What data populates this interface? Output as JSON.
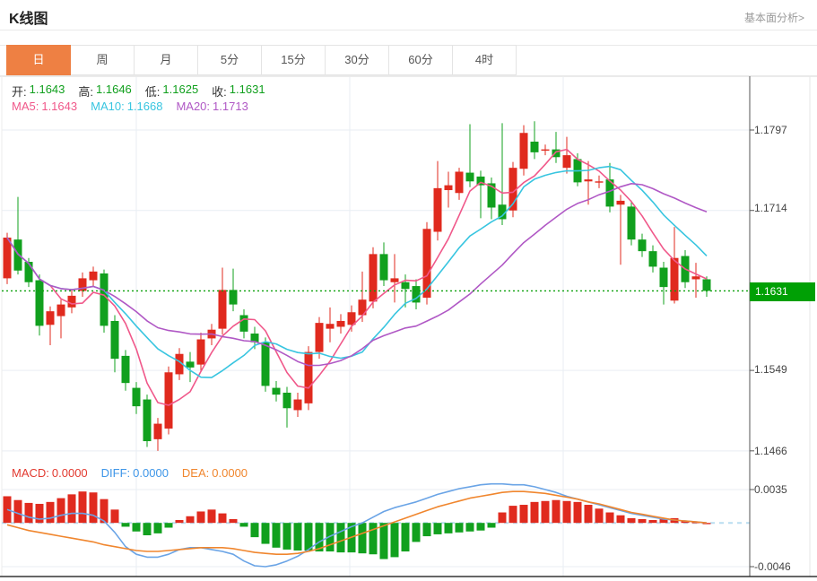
{
  "header": {
    "title": "K线图",
    "link": "基本面分析>"
  },
  "tabs": {
    "items": [
      "日",
      "周",
      "月",
      "5分",
      "15分",
      "30分",
      "60分",
      "4时"
    ],
    "active_index": 0
  },
  "ohlc_legend": {
    "open_label": "开:",
    "open": "1.1643",
    "high_label": "高:",
    "high": "1.1646",
    "low_label": "低:",
    "low": "1.1625",
    "close_label": "收:",
    "close": "1.1631"
  },
  "ma_legend": {
    "ma5_label": "MA5:",
    "ma5": "1.1643",
    "ma10_label": "MA10:",
    "ma10": "1.1668",
    "ma20_label": "MA20:",
    "ma20": "1.1713"
  },
  "macd_legend": {
    "macd_label": "MACD:",
    "macd": "0.0000",
    "diff_label": "DIFF:",
    "diff": "0.0000",
    "dea_label": "DEA:",
    "dea": "0.0000"
  },
  "colors": {
    "accent_tab": "#ee8043",
    "up": "#e02a1e",
    "down": "#11a01e",
    "ohlc_value": "#11a01e",
    "ma5": "#f0588a",
    "ma10": "#38c5e0",
    "ma20": "#b058c5",
    "diff_line": "#6aa4e6",
    "dea_line": "#f0862e",
    "macd_value_red": "#e23a30",
    "diff_value_blue": "#3e96e8",
    "dea_value_orange": "#f0862e",
    "badge_green": "#00a005",
    "price_dotted_line": "#0aa00a",
    "zero_dash": "#b9ddf1",
    "grid": "#e9eef3",
    "axis": "#555555",
    "bottom_axis": "#333333"
  },
  "chart_data": {
    "type": "candlestick+macd",
    "title": "K线图 (日)",
    "legend_position": "top-left",
    "grid": true,
    "price_axis": {
      "ticks": [
        "1.1797",
        "1.1714",
        "1.1549",
        "1.1466"
      ],
      "current_price_label": "1.1631",
      "range": [
        1.142,
        1.1852
      ]
    },
    "macd_axis": {
      "ticks": [
        "0.0035",
        "-0.0046"
      ],
      "range": [
        -0.0056,
        0.0045
      ]
    },
    "ma_periods": [
      5,
      10,
      20
    ],
    "candles_ohlc": [
      [
        1.1644,
        1.1691,
        1.1638,
        1.1686
      ],
      [
        1.1684,
        1.1728,
        1.1648,
        1.1652
      ],
      [
        1.1661,
        1.1665,
        1.1635,
        1.164
      ],
      [
        1.1642,
        1.1648,
        1.1585,
        1.1595
      ],
      [
        1.1596,
        1.1615,
        1.1575,
        1.161
      ],
      [
        1.1605,
        1.1622,
        1.1582,
        1.1617
      ],
      [
        1.1614,
        1.1632,
        1.1608,
        1.1626
      ],
      [
        1.1631,
        1.165,
        1.1625,
        1.1644
      ],
      [
        1.1642,
        1.1656,
        1.1636,
        1.1651
      ],
      [
        1.1649,
        1.1653,
        1.1588,
        1.1595
      ],
      [
        1.16,
        1.1606,
        1.1547,
        1.1561
      ],
      [
        1.1564,
        1.157,
        1.1528,
        1.1536
      ],
      [
        1.1531,
        1.1537,
        1.1504,
        1.1512
      ],
      [
        1.1519,
        1.1524,
        1.147,
        1.1476
      ],
      [
        1.1478,
        1.15,
        1.1466,
        1.1494
      ],
      [
        1.1489,
        1.1553,
        1.1483,
        1.1547
      ],
      [
        1.1545,
        1.1572,
        1.1539,
        1.1566
      ],
      [
        1.1558,
        1.1568,
        1.1537,
        1.1552
      ],
      [
        1.1555,
        1.1588,
        1.1548,
        1.1581
      ],
      [
        1.1582,
        1.1597,
        1.1575,
        1.1591
      ],
      [
        1.1592,
        1.1655,
        1.1586,
        1.1632
      ],
      [
        1.1632,
        1.1654,
        1.161,
        1.1617
      ],
      [
        1.1606,
        1.1612,
        1.1582,
        1.1589
      ],
      [
        1.1587,
        1.1594,
        1.1571,
        1.1578
      ],
      [
        1.1578,
        1.1583,
        1.1527,
        1.1533
      ],
      [
        1.1531,
        1.1538,
        1.1517,
        1.1524
      ],
      [
        1.1526,
        1.1532,
        1.149,
        1.151
      ],
      [
        1.1508,
        1.1526,
        1.1501,
        1.1519
      ],
      [
        1.1515,
        1.1574,
        1.1508,
        1.1568
      ],
      [
        1.1568,
        1.1604,
        1.1561,
        1.1598
      ],
      [
        1.1592,
        1.1614,
        1.1578,
        1.1597
      ],
      [
        1.1594,
        1.1607,
        1.1587,
        1.16
      ],
      [
        1.1596,
        1.1616,
        1.1589,
        1.1609
      ],
      [
        1.1606,
        1.1651,
        1.1599,
        1.1622
      ],
      [
        1.162,
        1.1676,
        1.1613,
        1.1669
      ],
      [
        1.1669,
        1.1681,
        1.1636,
        1.1642
      ],
      [
        1.164,
        1.1669,
        1.1619,
        1.1644
      ],
      [
        1.164,
        1.1648,
        1.1614,
        1.1633
      ],
      [
        1.1636,
        1.1643,
        1.1612,
        1.1619
      ],
      [
        1.1624,
        1.1702,
        1.1617,
        1.1695
      ],
      [
        1.1692,
        1.1765,
        1.1683,
        1.1737
      ],
      [
        1.1735,
        1.1754,
        1.1717,
        1.174
      ],
      [
        1.1732,
        1.1758,
        1.1725,
        1.1754
      ],
      [
        1.1753,
        1.1803,
        1.1738,
        1.1744
      ],
      [
        1.1749,
        1.1755,
        1.1706,
        1.174
      ],
      [
        1.1742,
        1.1748,
        1.1705,
        1.1717
      ],
      [
        1.172,
        1.1804,
        1.1699,
        1.1705
      ],
      [
        1.1714,
        1.1764,
        1.1707,
        1.1758
      ],
      [
        1.1757,
        1.1802,
        1.175,
        1.1794
      ],
      [
        1.1785,
        1.1806,
        1.1767,
        1.1774
      ],
      [
        1.1776,
        1.1782,
        1.1771,
        1.1777
      ],
      [
        1.1777,
        1.1795,
        1.1763,
        1.1769
      ],
      [
        1.1758,
        1.179,
        1.1752,
        1.1771
      ],
      [
        1.1767,
        1.1773,
        1.1739,
        1.1743
      ],
      [
        1.1744,
        1.1765,
        1.172,
        1.1746
      ],
      [
        1.1743,
        1.175,
        1.1737,
        1.1744
      ],
      [
        1.1746,
        1.1763,
        1.1712,
        1.1718
      ],
      [
        1.172,
        1.173,
        1.1658,
        1.1724
      ],
      [
        1.1718,
        1.1724,
        1.1678,
        1.1684
      ],
      [
        1.1684,
        1.169,
        1.1666,
        1.1672
      ],
      [
        1.1672,
        1.1678,
        1.165,
        1.1656
      ],
      [
        1.1655,
        1.1661,
        1.1617,
        1.1635
      ],
      [
        1.1621,
        1.1697,
        1.1618,
        1.1665
      ],
      [
        1.1667,
        1.1673,
        1.1634,
        1.164
      ],
      [
        1.1643,
        1.166,
        1.1624,
        1.1646
      ],
      [
        1.1643,
        1.1646,
        1.1625,
        1.1631
      ]
    ],
    "current_price": 1.1631,
    "macd": {
      "unit": 0.0001,
      "hist_1e4": [
        28,
        24,
        21,
        20,
        22,
        26,
        30,
        33,
        32,
        25,
        14,
        -4,
        -9,
        -13,
        -11,
        -5,
        3,
        7,
        12,
        14,
        10,
        4,
        -4,
        -15,
        -22,
        -26,
        -28,
        -29,
        -29,
        -30,
        -30,
        -31,
        -31,
        -32,
        -33,
        -38,
        -36,
        -30,
        -20,
        -14,
        -12,
        -11,
        -10,
        -9,
        -8,
        -5,
        11,
        18,
        19,
        22,
        23,
        24,
        23,
        22,
        19,
        15,
        11,
        8,
        5,
        4,
        3,
        4,
        5,
        2,
        1,
        0
      ],
      "diff_1e4": [
        14,
        10,
        6,
        4,
        5,
        8,
        10,
        10,
        8,
        2,
        -10,
        -25,
        -33,
        -36,
        -36,
        -33,
        -28,
        -26,
        -26,
        -28,
        -30,
        -33,
        -40,
        -45,
        -46,
        -44,
        -40,
        -35,
        -28,
        -20,
        -14,
        -9,
        -4,
        0,
        6,
        12,
        16,
        19,
        22,
        26,
        30,
        33,
        36,
        38,
        40,
        41,
        41,
        40,
        40,
        38,
        35,
        32,
        28,
        25,
        22,
        19,
        16,
        13,
        10,
        8,
        6,
        4,
        3,
        2,
        1,
        0
      ],
      "dea_1e4": [
        -2,
        -5,
        -8,
        -10,
        -12,
        -14,
        -16,
        -18,
        -20,
        -23,
        -25,
        -27,
        -29,
        -30,
        -30,
        -29,
        -28,
        -27,
        -26,
        -26,
        -26,
        -27,
        -29,
        -31,
        -32,
        -33,
        -33,
        -32,
        -30,
        -27,
        -23,
        -19,
        -15,
        -11,
        -7,
        -3,
        1,
        5,
        9,
        13,
        17,
        20,
        23,
        26,
        28,
        30,
        32,
        33,
        33,
        32,
        31,
        29,
        27,
        25,
        22,
        20,
        17,
        14,
        11,
        9,
        7,
        5,
        3,
        2,
        1,
        0
      ]
    }
  }
}
